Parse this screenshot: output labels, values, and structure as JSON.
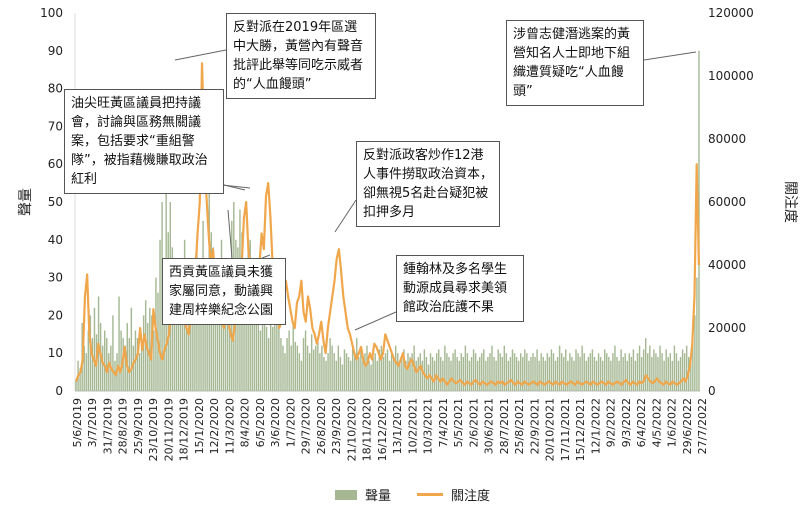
{
  "chart_data": {
    "type": "bar+line",
    "ylabel_left": "聲量",
    "ylabel_right": "關注度",
    "ylim_left": [
      0,
      100
    ],
    "ylim_right": [
      0,
      120000
    ],
    "yticks_left": [
      "0",
      "10",
      "20",
      "30",
      "40",
      "50",
      "60",
      "70",
      "80",
      "90",
      "100"
    ],
    "yticks_right": [
      "0",
      "20000",
      "40000",
      "60000",
      "80000",
      "100000",
      "120000"
    ],
    "x_tick_labels": [
      "5/6/2019",
      "3/7/2019",
      "31/7/2019",
      "28/8/2019",
      "25/9/2019",
      "23/10/2019",
      "20/11/2019",
      "18/12/2019",
      "15/1/2020",
      "12/2/2020",
      "11/3/2020",
      "8/4/2020",
      "6/5/2020",
      "3/6/2020",
      "1/7/2020",
      "29/7/2020",
      "26/8/2020",
      "23/9/2020",
      "21/10/2020",
      "18/11/2020",
      "16/12/2020",
      "13/1/2021",
      "10/2/2021",
      "10/3/2021",
      "7/4/2021",
      "5/5/2021",
      "2/6/2021",
      "30/6/2021",
      "28/7/2021",
      "25/8/2021",
      "22/9/2021",
      "20/10/2021",
      "17/11/2021",
      "15/12/2021",
      "12/1/2022",
      "9/2/2022",
      "9/3/2022",
      "6/4/2022",
      "4/5/2022",
      "1/6/2022",
      "29/6/2022",
      "27/7/2022"
    ],
    "series": [
      {
        "name": "聲量",
        "type": "bar",
        "color": "#a5b893",
        "values": [
          3,
          8,
          6,
          18,
          12,
          10,
          16,
          20,
          14,
          22,
          15,
          25,
          18,
          12,
          16,
          14,
          10,
          12,
          20,
          8,
          10,
          25,
          16,
          14,
          12,
          18,
          14,
          22,
          12,
          16,
          14,
          10,
          12,
          20,
          24,
          18,
          22,
          20,
          16,
          30,
          26,
          40,
          50,
          35,
          60,
          42,
          50,
          38,
          30,
          28,
          32,
          26,
          24,
          40,
          30,
          22,
          25,
          18,
          28,
          38,
          22,
          35,
          45,
          30,
          32,
          55,
          42,
          38,
          30,
          25,
          35,
          40,
          32,
          30,
          25,
          34,
          45,
          50,
          40,
          38,
          48,
          42,
          35,
          30,
          38,
          40,
          35,
          32,
          26,
          18,
          16,
          22,
          18,
          17,
          14,
          22,
          17,
          20,
          24,
          28,
          14,
          12,
          10,
          14,
          16,
          12,
          18,
          13,
          12,
          10,
          8,
          14,
          16,
          12,
          10,
          15,
          11,
          12,
          14,
          10,
          12,
          9,
          8,
          10,
          14,
          12,
          10,
          8,
          12,
          9,
          7,
          11,
          10,
          9,
          8,
          12,
          10,
          14,
          9,
          11,
          8,
          10,
          12,
          8,
          7,
          9,
          10,
          8,
          11,
          12,
          9,
          10,
          11,
          8,
          10,
          9,
          12,
          10,
          8,
          9,
          11,
          8,
          10,
          9,
          10,
          12,
          8,
          9,
          10,
          8,
          11,
          9,
          7,
          10,
          9,
          8,
          10,
          11,
          9,
          8,
          12,
          10,
          9,
          8,
          10,
          11,
          9,
          8,
          10,
          9,
          12,
          10,
          8,
          9,
          11,
          10,
          8,
          9,
          10,
          11,
          8,
          9,
          10,
          12,
          9,
          8,
          11,
          10,
          9,
          12,
          10,
          8,
          9,
          11,
          10,
          9,
          8,
          10,
          9,
          11,
          10,
          8,
          9,
          10,
          9,
          11,
          8,
          10,
          9,
          8,
          10,
          9,
          11,
          10,
          8,
          9,
          12,
          10,
          9,
          11,
          8,
          10,
          9,
          8,
          11,
          10,
          9,
          12,
          10,
          8,
          9,
          10,
          11,
          9,
          8,
          10,
          9,
          8,
          11,
          10,
          9,
          8,
          10,
          12,
          9,
          8,
          11,
          9,
          10,
          8,
          10,
          9,
          11,
          8,
          10,
          12,
          9,
          11,
          14,
          10,
          12,
          9,
          11,
          10,
          9,
          12,
          10,
          8,
          11,
          9,
          10,
          8,
          12,
          10,
          8,
          9,
          11,
          10,
          12,
          9,
          8,
          14,
          20,
          30,
          90
        ]
      },
      {
        "name": "關注度",
        "type": "line",
        "color": "#f0a64a",
        "values": [
          3000,
          5000,
          6000,
          10000,
          30000,
          37000,
          18000,
          12000,
          10000,
          8000,
          15000,
          12000,
          9000,
          8000,
          6000,
          9000,
          7000,
          6000,
          5000,
          8000,
          6000,
          9000,
          14000,
          8000,
          6000,
          7000,
          9000,
          10000,
          12000,
          20000,
          13000,
          18000,
          14000,
          12000,
          10000,
          26000,
          20000,
          16000,
          12000,
          10000,
          13000,
          15000,
          18000,
          25000,
          35000,
          25000,
          22000,
          30000,
          26000,
          22000,
          20000,
          18000,
          24000,
          30000,
          38000,
          50000,
          60000,
          104000,
          80000,
          62000,
          50000,
          40000,
          45000,
          35000,
          30000,
          25000,
          22000,
          20000,
          25000,
          22000,
          18000,
          16000,
          22000,
          25000,
          30000,
          40000,
          55000,
          60000,
          45000,
          38000,
          35000,
          30000,
          28000,
          40000,
          50000,
          45000,
          62000,
          66000,
          55000,
          40000,
          30000,
          25000,
          20000,
          22000,
          28000,
          35000,
          30000,
          26000,
          22000,
          20000,
          28000,
          30000,
          35000,
          25000,
          22000,
          30000,
          26000,
          20000,
          18000,
          15000,
          18000,
          22000,
          16000,
          12000,
          20000,
          25000,
          30000,
          35000,
          42000,
          45000,
          38000,
          30000,
          25000,
          20000,
          18000,
          15000,
          12000,
          10000,
          12000,
          14000,
          10000,
          8000,
          9000,
          12000,
          10000,
          15000,
          14000,
          12000,
          10000,
          12000,
          18000,
          16000,
          14000,
          12000,
          10000,
          9000,
          8000,
          10000,
          12000,
          8000,
          7000,
          9000,
          10000,
          8000,
          6000,
          7000,
          8000,
          6000,
          5000,
          4000,
          5000,
          4000,
          3000,
          5000,
          4000,
          3000,
          4000,
          3000,
          2000,
          3000,
          4000,
          3000,
          2500,
          3000,
          3500,
          2500,
          2000,
          3000,
          2500,
          2000,
          3000,
          3500,
          2500,
          2000,
          3000,
          2500,
          2000,
          2500,
          3000,
          2500,
          2000,
          3000,
          2500,
          3000,
          2000,
          2500,
          3000,
          3500,
          2500,
          2000,
          3000,
          2500,
          2000,
          3000,
          2500,
          2000,
          2500,
          3000,
          2500,
          2000,
          3000,
          2500,
          2000,
          2500,
          3000,
          2500,
          2000,
          3000,
          2500,
          2000,
          3000,
          2500,
          2000,
          2500,
          3000,
          2500,
          2000,
          3000,
          2500,
          2000,
          2500,
          3000,
          2500,
          2000,
          3000,
          2500,
          2000,
          2500,
          3000,
          2500,
          2000,
          3000,
          2500,
          2000,
          2500,
          3000,
          2500,
          2000,
          3000,
          3500,
          2500,
          2000,
          3000,
          2500,
          2000,
          3000,
          2500,
          3000,
          5000,
          4000,
          3000,
          2500,
          3000,
          4000,
          3000,
          2500,
          2000,
          3000,
          2500,
          2000,
          3000,
          2500,
          2000,
          2500,
          3000,
          4000,
          3000,
          5000,
          8000,
          15000,
          30000,
          72000,
          40000
        ]
      }
    ],
    "legend": [
      "聲量",
      "關注度"
    ],
    "legend_position": "bottom"
  },
  "annotations": [
    {
      "id": "a1",
      "text": "反對派在2019年區選中大勝，黃營內有聲音批評此舉等同吃示威者的“人血饅頭”"
    },
    {
      "id": "a2",
      "text": "油尖旺黃區議員把持議會，討論與區務無關議案，包括要求“重組警隊”，被指藉機賺取政治紅利"
    },
    {
      "id": "a3",
      "text": "反對派政客炒作12港人事件撈取政治資本，卻無視5名赴台疑犯被扣押多月"
    },
    {
      "id": "a4",
      "text": "西貢黃區議員未獲家屬同意，動議興建周梓樂紀念公園"
    },
    {
      "id": "a5",
      "text": "鍾翰林及多名學生動源成員尋求美領館政治庇護不果"
    },
    {
      "id": "a6",
      "text": "涉曾志健潛逃案的黃營知名人士即地下組織遭質疑吃“人血饅頭”"
    }
  ]
}
